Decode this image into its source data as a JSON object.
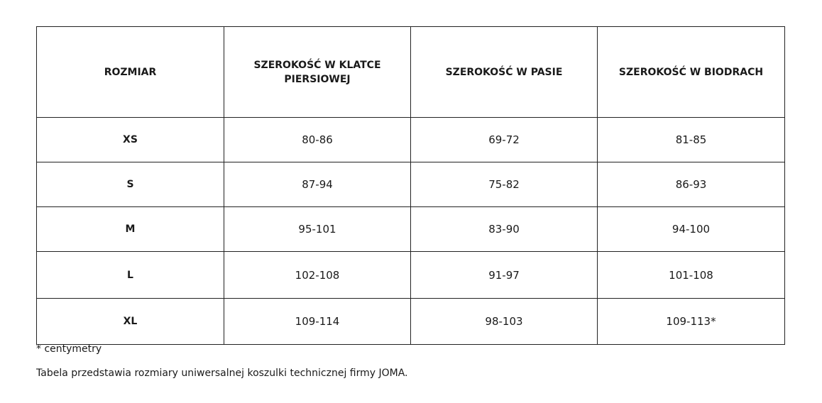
{
  "table": {
    "headers": [
      "ROZMIAR",
      "SZEROKOŚĆ W KLATCE PIERSIOWEJ",
      "SZEROKOŚĆ W PASIE",
      "SZEROKOŚĆ W BIODRACH"
    ],
    "rows": [
      [
        "XS",
        "80-86",
        "69-72",
        "81-85"
      ],
      [
        "S",
        "87-94",
        "75-82",
        "86-93"
      ],
      [
        "M",
        "95-101",
        "83-90",
        "94-100"
      ],
      [
        "L",
        "102-108",
        "91-97",
        "101-108"
      ],
      [
        "XL",
        "109-114",
        "98-103",
        "109-113*"
      ]
    ]
  },
  "footnote": "* centymetry",
  "caption": "Tabela przedstawia rozmiary uniwersalnej koszulki technicznej firmy JOMA."
}
